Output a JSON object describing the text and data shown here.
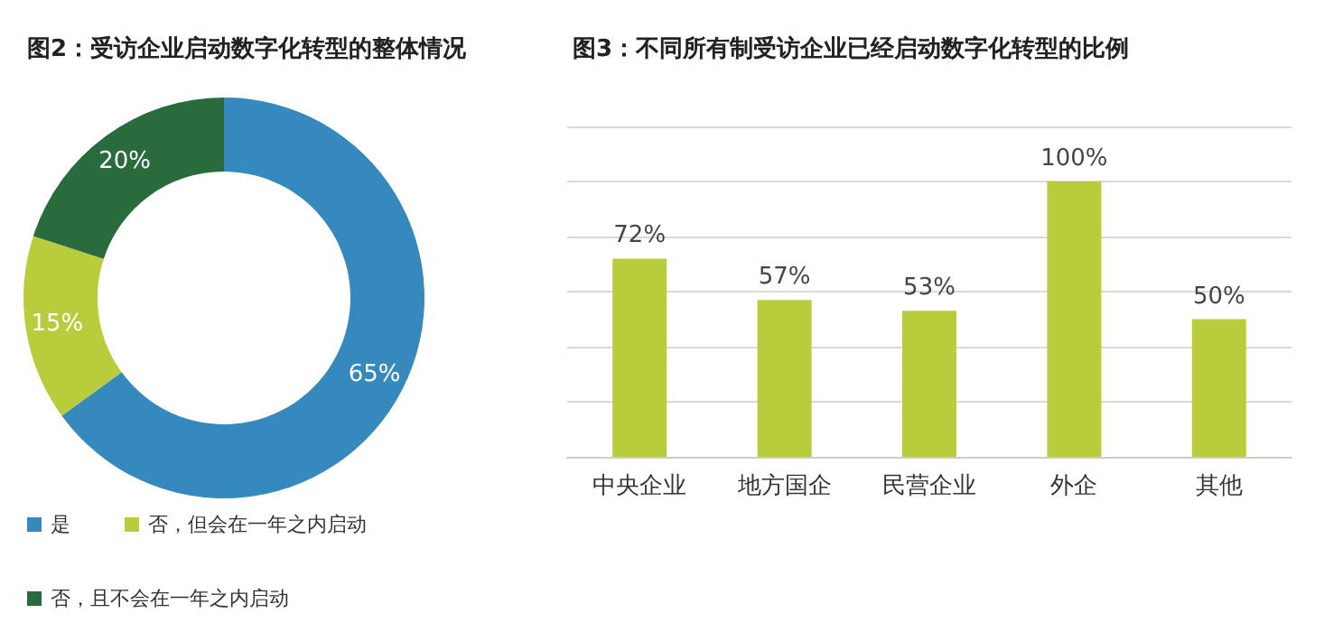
{
  "chart_data": [
    {
      "type": "donut",
      "title": "图2：受访企业启动数字化转型的整体情况",
      "categories": [
        "是",
        "否，但会在一年之内启动",
        "否，且不会在一年之内启动"
      ],
      "values": [
        65,
        15,
        20
      ],
      "colors": [
        "#3589bc",
        "#b9cc3c",
        "#2a6b3d"
      ],
      "value_labels": [
        "65%",
        "15%",
        "20%"
      ],
      "legend": "bottom"
    },
    {
      "type": "bar",
      "title": "图3：不同所有制受访企业已经启动数字化转型的比例",
      "categories": [
        "中央企业",
        "地方国企",
        "民营企业",
        "外企",
        "其他"
      ],
      "values": [
        72,
        57,
        53,
        100,
        50
      ],
      "value_labels": [
        "72%",
        "57%",
        "53%",
        "100%",
        "50%"
      ],
      "color": "#b9cc3c",
      "ylim": [
        0,
        120
      ],
      "yticks": [
        {
          "value": 0,
          "label": null
        },
        {
          "value": 20,
          "label": null
        },
        {
          "value": 40,
          "label": null
        },
        {
          "value": 60,
          "label": null
        },
        {
          "value": 80,
          "label": null
        },
        {
          "value": 100,
          "label": null
        },
        {
          "value": 120,
          "label": null
        }
      ],
      "grid": "y",
      "tick_labels": "x"
    }
  ]
}
